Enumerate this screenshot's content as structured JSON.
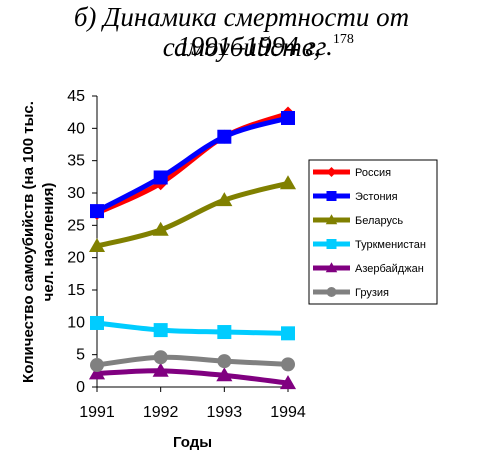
{
  "title": {
    "line1": "б) Динамика смертности от самоубийств,",
    "line2": "1991–1994 гг.",
    "footnote": "178"
  },
  "chart_data": {
    "type": "line",
    "x": [
      "1991",
      "1992",
      "1993",
      "1994"
    ],
    "xlabel": "Годы",
    "ylabel_line1": "Количество самоубийств (на 100 тыс.",
    "ylabel_line2": "чел. населения)",
    "ylim": [
      0,
      45
    ],
    "yticks": [
      "0",
      "5",
      "10",
      "15",
      "20",
      "25",
      "30",
      "35",
      "40",
      "45"
    ],
    "grid": false,
    "legend_position": "right",
    "series": [
      {
        "name": "Россия",
        "values": [
          26.9,
          31.5,
          38.7,
          42.3
        ],
        "color": "#ff0000",
        "marker": "diamond"
      },
      {
        "name": "Эстония",
        "values": [
          27.2,
          32.4,
          38.7,
          41.6
        ],
        "color": "#0000ff",
        "marker": "square"
      },
      {
        "name": "Беларусь",
        "values": [
          21.8,
          24.3,
          28.9,
          31.5
        ],
        "color": "#808000",
        "marker": "triangle"
      },
      {
        "name": "Туркменистан",
        "values": [
          9.9,
          8.8,
          8.5,
          8.3
        ],
        "color": "#00ccff",
        "marker": "square"
      },
      {
        "name": "Азербайджан",
        "values": [
          2.1,
          2.5,
          1.8,
          0.6
        ],
        "color": "#800080",
        "marker": "triangle"
      },
      {
        "name": "Грузия",
        "values": [
          3.4,
          4.6,
          4.0,
          3.5
        ],
        "color": "#808080",
        "marker": "circle"
      }
    ]
  }
}
